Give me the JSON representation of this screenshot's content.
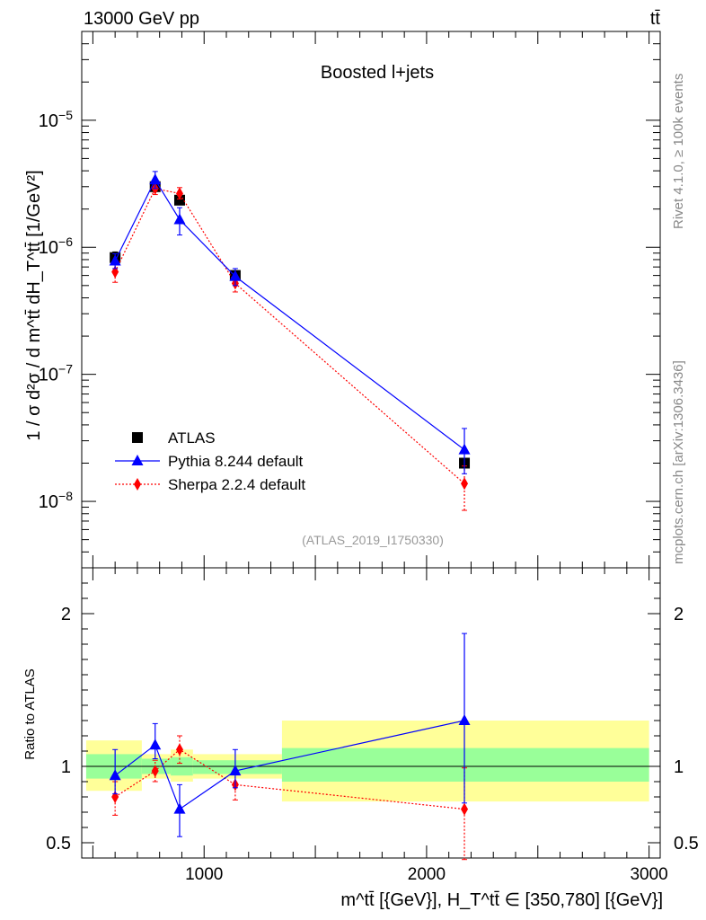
{
  "header": {
    "left": "13000 GeV pp",
    "right": "tt̄"
  },
  "side_labels": {
    "rivet": "Rivet 4.1.0, ≥ 100k events",
    "mcplots": "mcplots.cern.ch [arXiv:1306.3436]"
  },
  "chart_data": [
    {
      "type": "line",
      "panel": "main",
      "title": "Boosted l+jets",
      "watermark": "(ATLAS_2019_I1750330)",
      "ylabel": "1 / σ d²σ / d m^tt̄ dH_T^tt̄ [1/GeV²]",
      "yscale": "log",
      "ylim": [
        3e-09,
        5e-05
      ],
      "xlim": [
        450,
        3050
      ],
      "yticks": [
        {
          "value": 1e-08,
          "base": "10",
          "exp": "−8"
        },
        {
          "value": 1e-07,
          "base": "10",
          "exp": "−7"
        },
        {
          "value": 1e-06,
          "base": "10",
          "exp": "−6"
        },
        {
          "value": 1e-05,
          "base": "10",
          "exp": "−5"
        }
      ],
      "legend": [
        "ATLAS",
        "Pythia 8.244 default",
        "Sherpa 2.2.4 default"
      ],
      "legend_position": "bottom-left",
      "series": [
        {
          "name": "ATLAS",
          "color": "#000000",
          "marker": "square",
          "x": [
            600,
            780,
            890,
            1140,
            2170
          ],
          "y": [
            8.3e-07,
            3e-06,
            2.35e-06,
            6e-07,
            2e-08
          ],
          "yerr_lo": [
            7.5e-07,
            2.85e-06,
            2.2e-06,
            5.5e-07,
            1.9e-08
          ],
          "yerr_hi": [
            9.2e-07,
            3.15e-06,
            2.5e-06,
            6.5e-07,
            2.1e-08
          ]
        },
        {
          "name": "Pythia 8.244 default",
          "color": "#0000ff",
          "marker": "triangle",
          "x": [
            600,
            780,
            890,
            1140,
            2170
          ],
          "y": [
            7.8e-07,
            3.4e-06,
            1.65e-06,
            5.9e-07,
            2.55e-08
          ],
          "yerr_lo": [
            6.8e-07,
            2.9e-06,
            1.25e-06,
            5e-07,
            1.65e-08
          ],
          "yerr_hi": [
            8.9e-07,
            3.95e-06,
            2.05e-06,
            6.8e-07,
            3.75e-08
          ]
        },
        {
          "name": "Sherpa 2.2.4 default",
          "color": "#ff0000",
          "marker": "diamond",
          "x": [
            600,
            780,
            890,
            1140,
            2170
          ],
          "y": [
            6.4e-07,
            2.9e-06,
            2.65e-06,
            5.2e-07,
            1.38e-08
          ],
          "yerr_lo": [
            5.3e-07,
            2.6e-06,
            2.4e-06,
            4.45e-07,
            8.5e-09
          ],
          "yerr_hi": [
            7.6e-07,
            3.2e-06,
            2.95e-06,
            6e-07,
            1.9e-08
          ]
        }
      ]
    },
    {
      "type": "line",
      "panel": "ratio",
      "ylabel": "Ratio to ATLAS",
      "xlabel": "m^tt̄ [{GeV}], H_T^tt̄ ∈ [350,780] [{GeV}]",
      "xlim": [
        450,
        3050
      ],
      "ylim": [
        0.4,
        2.3
      ],
      "xticks": [
        1000,
        2000,
        3000
      ],
      "yticks": [
        0.5,
        1,
        2
      ],
      "reference": 1.0,
      "bands": [
        {
          "x": [
            470,
            720
          ],
          "green": [
            0.92,
            1.08
          ],
          "yellow": [
            0.84,
            1.17
          ]
        },
        {
          "x": [
            720,
            850
          ],
          "green": [
            0.95,
            1.05
          ],
          "yellow": [
            0.92,
            1.08
          ]
        },
        {
          "x": [
            850,
            950
          ],
          "green": [
            0.94,
            1.06
          ],
          "yellow": [
            0.9,
            1.11
          ]
        },
        {
          "x": [
            950,
            1350
          ],
          "green": [
            0.95,
            1.04
          ],
          "yellow": [
            0.92,
            1.08
          ]
        },
        {
          "x": [
            1350,
            3000
          ],
          "green": [
            0.9,
            1.12
          ],
          "yellow": [
            0.77,
            1.3
          ]
        }
      ],
      "series": [
        {
          "name": "Pythia 8.244 default",
          "color": "#0000ff",
          "marker": "triangle",
          "x": [
            600,
            780,
            890,
            1140,
            2170
          ],
          "y": [
            0.94,
            1.14,
            0.72,
            0.97,
            1.3
          ],
          "yerr_lo": [
            0.82,
            1.05,
            0.54,
            0.86,
            0.76
          ],
          "yerr_hi": [
            1.11,
            1.28,
            0.88,
            1.11,
            1.87
          ]
        },
        {
          "name": "Sherpa 2.2.4 default",
          "color": "#ff0000",
          "marker": "diamond",
          "x": [
            600,
            780,
            890,
            1140,
            2170
          ],
          "y": [
            0.8,
            0.97,
            1.11,
            0.88,
            0.72
          ],
          "yerr_lo": [
            0.68,
            0.9,
            1.02,
            0.78,
            0.39
          ],
          "yerr_hi": [
            0.9,
            1.04,
            1.2,
            0.95,
            0.99
          ]
        }
      ]
    }
  ]
}
